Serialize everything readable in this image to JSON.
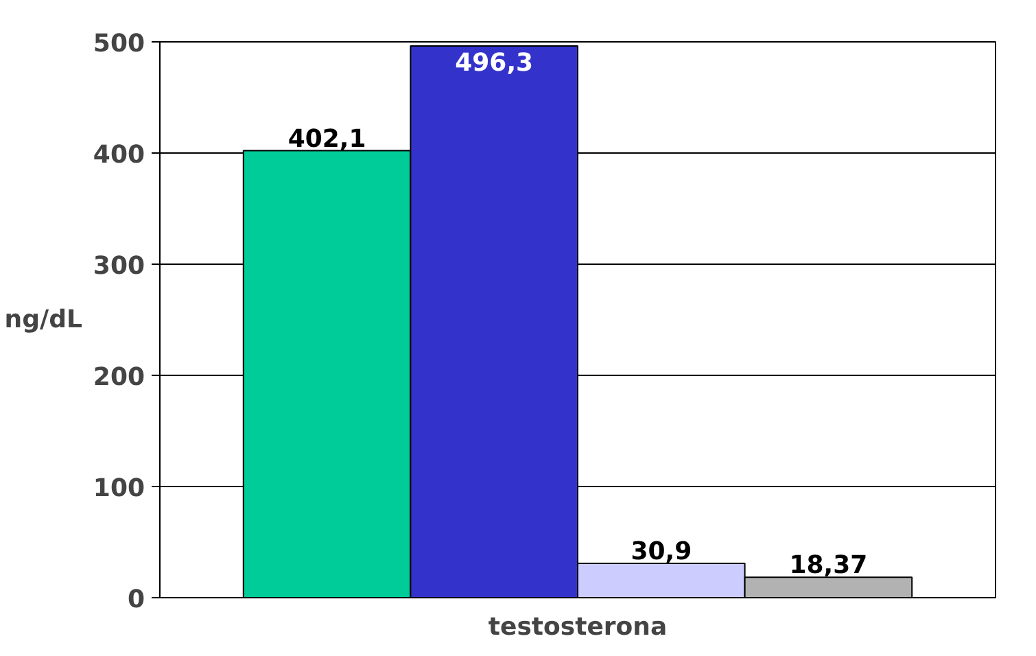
{
  "chart_data": {
    "type": "bar",
    "ylabel": "ng/dL",
    "categories": [
      "testosterona"
    ],
    "series": [
      {
        "color": "#00cc99",
        "values": [
          402.1
        ],
        "value_labels": [
          "402,1"
        ]
      },
      {
        "color": "#3333cc",
        "values": [
          496.3
        ],
        "value_labels": [
          "496,3"
        ]
      },
      {
        "color": "#ccccff",
        "values": [
          30.9
        ],
        "value_labels": [
          "30,9"
        ]
      },
      {
        "color": "#b2b2b2",
        "values": [
          18.37
        ],
        "value_labels": [
          "18,37"
        ]
      }
    ],
    "ylim": [
      0,
      500
    ],
    "yticks": [
      0,
      100,
      200,
      300,
      400,
      500
    ],
    "grid": "y"
  }
}
